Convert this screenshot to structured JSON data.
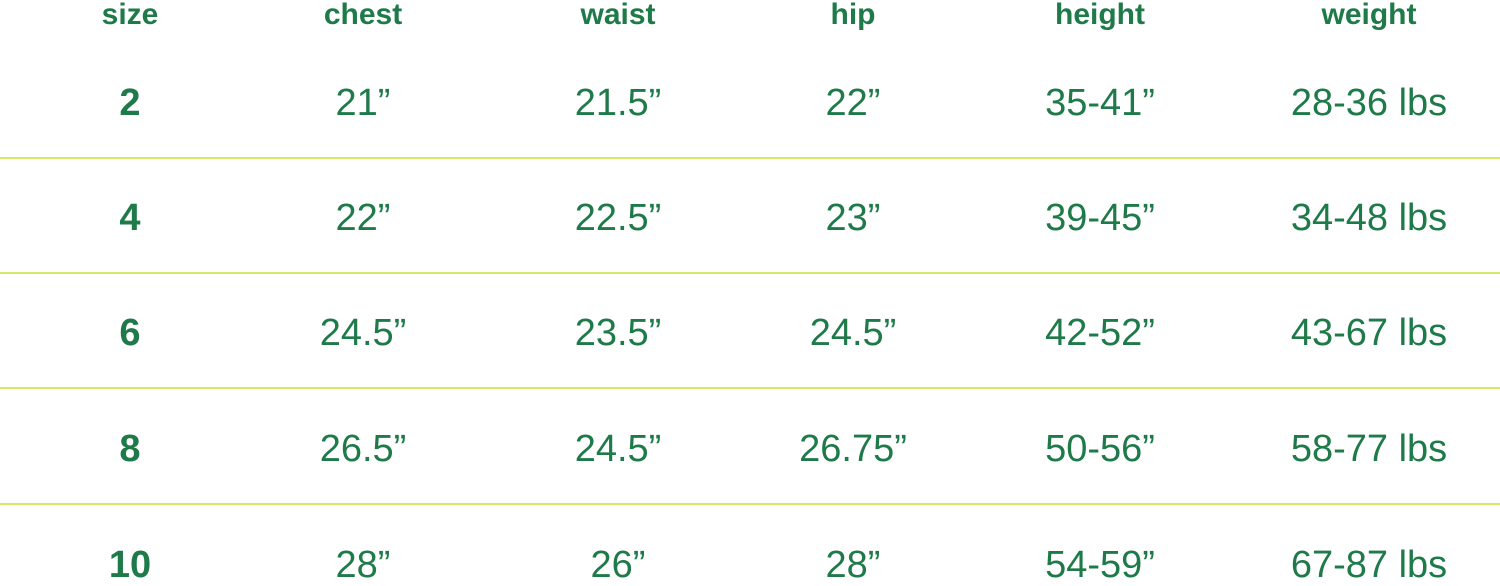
{
  "table": {
    "headers": [
      "size",
      "chest",
      "waist",
      "hip",
      "height",
      "weight"
    ],
    "rows": [
      [
        "2",
        "21”",
        "21.5”",
        "22”",
        "35-41”",
        "28-36 lbs"
      ],
      [
        "4",
        "22”",
        "22.5”",
        "23”",
        "39-45”",
        "34-48 lbs"
      ],
      [
        "6",
        "24.5”",
        "23.5”",
        "24.5”",
        "42-52”",
        "43-67 lbs"
      ],
      [
        "8",
        "26.5”",
        "24.5”",
        "26.75”",
        "50-56”",
        "58-77 lbs"
      ],
      [
        "10",
        "28”",
        "26”",
        "28”",
        "54-59”",
        "67-87 lbs"
      ]
    ]
  },
  "colors": {
    "text": "#1f7a4a",
    "divider": "#d4e86a"
  }
}
